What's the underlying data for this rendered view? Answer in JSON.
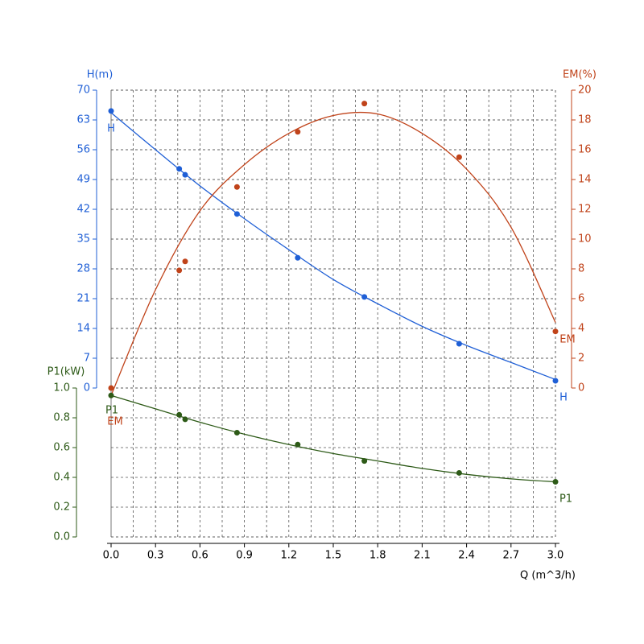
{
  "chart_data": {
    "type": "line",
    "x_label": "Q (m^3/h)",
    "y_label": "H(m)",
    "y2_label": "EM(%)",
    "y3_label": "P1(kW)",
    "xlim": [
      0,
      3
    ],
    "xticks": [
      {
        "value": 0,
        "label": "0.0"
      },
      0.3,
      0.6,
      0.9,
      1.2,
      1.5,
      1.8,
      2.1,
      2.4,
      2.7,
      {
        "value": 3,
        "label": "3.0"
      }
    ],
    "ylim": [
      0,
      70
    ],
    "yticks": [
      0,
      7,
      14,
      21,
      28,
      35,
      42,
      49,
      56,
      63,
      70
    ],
    "y2lim": [
      0,
      20
    ],
    "y2ticks": [
      0,
      2,
      4,
      6,
      8,
      10,
      12,
      14,
      16,
      18,
      20
    ],
    "y3lim": [
      0,
      1
    ],
    "y3ticks": [
      {
        "value": 0,
        "label": "0.0"
      },
      0.2,
      0.4,
      0.6,
      0.8,
      {
        "value": 1,
        "label": "1.0"
      }
    ],
    "grid": true,
    "curve_x": [
      0,
      0.3,
      0.6,
      0.9,
      1.2,
      1.5,
      1.8,
      2.1,
      2.4,
      2.7,
      3
    ],
    "series": [
      {
        "name": "H",
        "axis": "y",
        "color": "#1f5fd6",
        "x": [
          0,
          0.46,
          0.5,
          0.85,
          1.26,
          1.71,
          2.35,
          3
        ],
        "values": [
          65.1,
          51.5,
          50.1,
          40.9,
          30.6,
          21.4,
          10.4,
          1.7
        ],
        "curve_values": [
          64.7,
          56,
          47.5,
          39.8,
          32.5,
          25.5,
          19.8,
          14.5,
          10,
          6,
          2
        ]
      },
      {
        "name": "EM",
        "axis": "y2",
        "color": "#c0431a",
        "x": [
          0,
          0.46,
          0.5,
          0.85,
          1.26,
          1.71,
          2.35,
          3
        ],
        "values": [
          0,
          7.9,
          8.5,
          13.5,
          17.2,
          19.1,
          15.5,
          3.8
        ],
        "curve_values": [
          -0.5,
          6.6,
          11.9,
          15,
          17.1,
          18.3,
          18.4,
          17.1,
          14.7,
          10.8,
          4.4
        ]
      },
      {
        "name": "P1",
        "axis": "y3",
        "color": "#2d5a17",
        "x": [
          0,
          0.46,
          0.5,
          0.85,
          1.26,
          1.71,
          2.35,
          3
        ],
        "values": [
          0.95,
          0.82,
          0.79,
          0.7,
          0.62,
          0.51,
          0.43,
          0.37
        ],
        "curve_values": [
          0.95,
          0.86,
          0.77,
          0.69,
          0.62,
          0.56,
          0.51,
          0.46,
          0.42,
          0.39,
          0.37
        ]
      }
    ]
  }
}
